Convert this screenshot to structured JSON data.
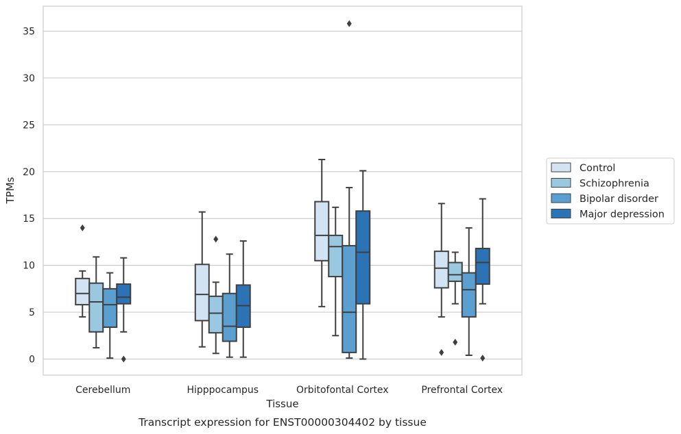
{
  "chart_data": {
    "type": "box",
    "title": "Transcript expression for ENST00000304402 by tissue",
    "xlabel": "Tissue",
    "ylabel": "TPMs",
    "ylim": [
      -1.7,
      37.3
    ],
    "yticks": [
      0,
      5,
      10,
      15,
      20,
      25,
      30,
      35
    ],
    "grid": "horizontal",
    "legend_position": "right",
    "categories": [
      "Cerebellum",
      "Hipppocampus",
      "Orbitofontal Cortex",
      "Prefrontal Cortex"
    ],
    "series": [
      {
        "name": "Control",
        "color": "#d2e3f3",
        "boxes": [
          {
            "whislo": 4.5,
            "q1": 5.8,
            "med": 7.0,
            "q3": 8.6,
            "whishi": 9.4,
            "fliers": [
              14.0
            ]
          },
          {
            "whislo": 1.3,
            "q1": 4.1,
            "med": 6.9,
            "q3": 10.1,
            "whishi": 15.7,
            "fliers": []
          },
          {
            "whislo": 5.6,
            "q1": 10.5,
            "med": 13.2,
            "q3": 16.8,
            "whishi": 21.3,
            "fliers": []
          },
          {
            "whislo": 4.5,
            "q1": 7.6,
            "med": 9.7,
            "q3": 11.5,
            "whishi": 16.6,
            "fliers": [
              0.7
            ]
          }
        ]
      },
      {
        "name": "Schizophrenia",
        "color": "#9ac8e0",
        "boxes": [
          {
            "whislo": 1.2,
            "q1": 2.9,
            "med": 6.1,
            "q3": 8.1,
            "whishi": 10.9,
            "fliers": []
          },
          {
            "whislo": 0.6,
            "q1": 2.8,
            "med": 4.9,
            "q3": 6.7,
            "whishi": 8.2,
            "fliers": [
              12.8
            ]
          },
          {
            "whislo": 2.5,
            "q1": 8.8,
            "med": 12.0,
            "q3": 13.2,
            "whishi": 16.2,
            "fliers": []
          },
          {
            "whislo": 5.9,
            "q1": 8.3,
            "med": 9.0,
            "q3": 10.3,
            "whishi": 11.4,
            "fliers": [
              1.8
            ]
          }
        ]
      },
      {
        "name": "Bipolar disorder",
        "color": "#5a9fcf",
        "boxes": [
          {
            "whislo": 0.1,
            "q1": 3.4,
            "med": 5.8,
            "q3": 7.5,
            "whishi": 9.2,
            "fliers": []
          },
          {
            "whislo": 0.2,
            "q1": 1.9,
            "med": 3.5,
            "q3": 7.0,
            "whishi": 11.2,
            "fliers": []
          },
          {
            "whislo": 0.1,
            "q1": 0.7,
            "med": 5.0,
            "q3": 12.1,
            "whishi": 18.3,
            "fliers": [
              35.8
            ]
          },
          {
            "whislo": 0.4,
            "q1": 4.5,
            "med": 7.4,
            "q3": 9.2,
            "whishi": 14.0,
            "fliers": []
          }
        ]
      },
      {
        "name": "Major depression",
        "color": "#2b73b5",
        "boxes": [
          {
            "whislo": 2.9,
            "q1": 5.9,
            "med": 6.6,
            "q3": 8.0,
            "whishi": 10.8,
            "fliers": [
              0.0
            ]
          },
          {
            "whislo": 0.2,
            "q1": 3.4,
            "med": 5.7,
            "q3": 7.9,
            "whishi": 12.6,
            "fliers": []
          },
          {
            "whislo": 0.0,
            "q1": 5.9,
            "med": 11.4,
            "q3": 15.8,
            "whishi": 20.1,
            "fliers": []
          },
          {
            "whislo": 5.9,
            "q1": 8.0,
            "med": 10.3,
            "q3": 11.8,
            "whishi": 17.1,
            "fliers": [
              0.1
            ]
          }
        ]
      }
    ]
  }
}
